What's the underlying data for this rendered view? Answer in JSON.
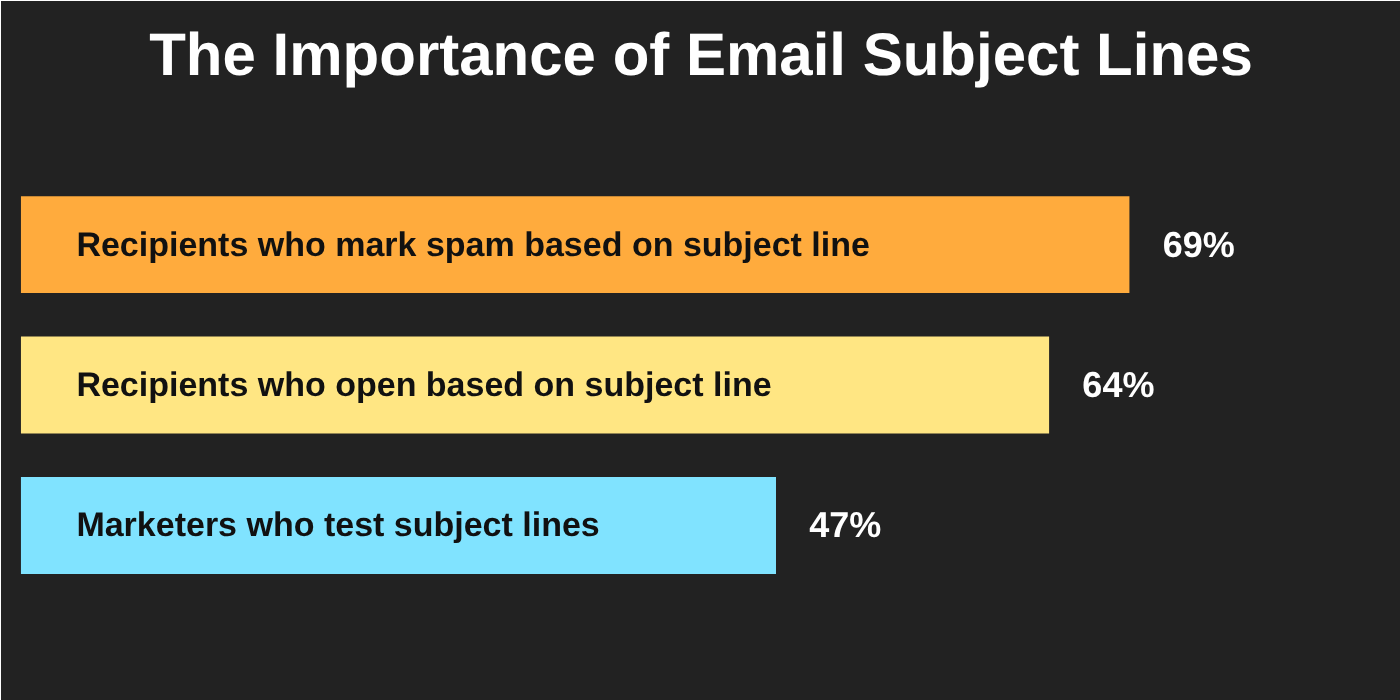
{
  "chart_data": {
    "type": "bar",
    "orientation": "horizontal",
    "title": "The Importance of Email Subject Lines",
    "categories": [
      "Recipients who mark spam based on subject line",
      "Recipients who open based on subject line",
      "Marketers who test subject lines"
    ],
    "values": [
      69,
      64,
      47
    ],
    "colors": [
      "#ffab3d",
      "#ffe683",
      "#80e3ff"
    ],
    "value_labels": [
      "69%",
      "64%",
      "47%"
    ]
  }
}
